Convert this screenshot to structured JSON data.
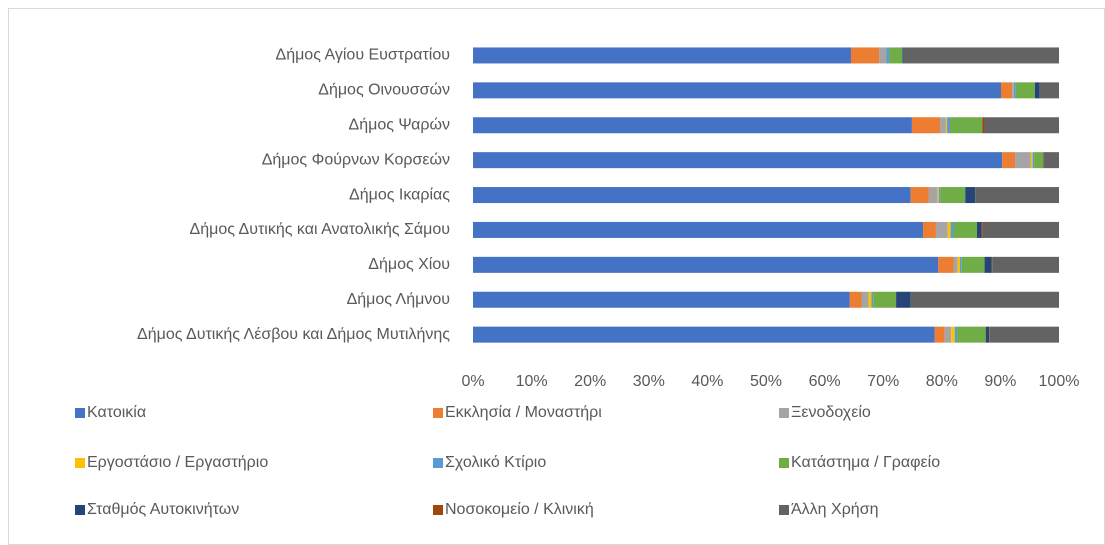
{
  "chart_data": {
    "type": "stacked_bar_horizontal",
    "categories": [
      "Δήμος Αγίου Ευστρατίου",
      "Δήμος Οινουσσών",
      "Δήμος Ψαρών",
      "Δήμος Φούρνων Κορσεών",
      "Δήμος Ικαρίας",
      "Δήμος Δυτικής και Ανατολικής Σάμου",
      "Δήμος Χίου",
      "Δήμος Λήμνου",
      "Δήμος Δυτικής Λέσβου και Δήμος Μυτιλήνης"
    ],
    "series": [
      {
        "name": "Κατοικία",
        "color": "#4472c4",
        "values": [
          64.5,
          90.1,
          74.9,
          90.3,
          74.7,
          76.8,
          79.4,
          64.3,
          78.8
        ]
      },
      {
        "name": "Εκκλησία / Μοναστήρι",
        "color": "#ed7d31",
        "values": [
          4.8,
          1.9,
          4.8,
          2.2,
          3.1,
          2.2,
          2.6,
          2.0,
          1.7
        ]
      },
      {
        "name": "Ξενοδοχείο",
        "color": "#a5a5a5",
        "values": [
          1.2,
          0.3,
          1.0,
          2.7,
          1.5,
          2.0,
          0.7,
          1.2,
          1.1
        ]
      },
      {
        "name": "Εργοστάσιο / Εργαστήριο",
        "color": "#ffc000",
        "values": [
          0,
          0,
          0.2,
          0.3,
          0.2,
          0.5,
          0.4,
          0.5,
          0.6
        ]
      },
      {
        "name": "Σχολικό Κτίριο",
        "color": "#5b9bd5",
        "values": [
          0.5,
          0.3,
          0.5,
          0.3,
          0.3,
          0.5,
          0.3,
          0.3,
          0.4
        ]
      },
      {
        "name": "Κατάστημα / Γραφείο",
        "color": "#70ad47",
        "values": [
          2.3,
          3.3,
          5.5,
          1.5,
          4.2,
          4.0,
          3.9,
          3.9,
          4.9
        ]
      },
      {
        "name": "Σταθμός Αυτοκινήτων",
        "color": "#264478",
        "values": [
          0.2,
          0.8,
          0,
          0,
          1.7,
          0.8,
          1.2,
          2.5,
          0.6
        ]
      },
      {
        "name": "Νοσοκομείο / Κλινική",
        "color": "#9e480e",
        "values": [
          0,
          0,
          0.3,
          0,
          0,
          0.2,
          0.1,
          0,
          0.1
        ]
      },
      {
        "name": "Άλλη Χρήση",
        "color": "#636363",
        "values": [
          26.5,
          3.3,
          12.8,
          2.7,
          14.3,
          13.0,
          11.4,
          25.3,
          11.8
        ]
      }
    ],
    "xlim": [
      0,
      100
    ],
    "xticks": [
      {
        "value": 0,
        "label": "0%"
      },
      {
        "value": 10,
        "label": "10%"
      },
      {
        "value": 20,
        "label": "20%"
      },
      {
        "value": 30,
        "label": "30%"
      },
      {
        "value": 40,
        "label": "40%"
      },
      {
        "value": 50,
        "label": "50%"
      },
      {
        "value": 60,
        "label": "60%"
      },
      {
        "value": 70,
        "label": "70%"
      },
      {
        "value": 80,
        "label": "80%"
      },
      {
        "value": 90,
        "label": "90%"
      },
      {
        "value": 100,
        "label": "100%"
      }
    ],
    "legend": "bottom"
  }
}
